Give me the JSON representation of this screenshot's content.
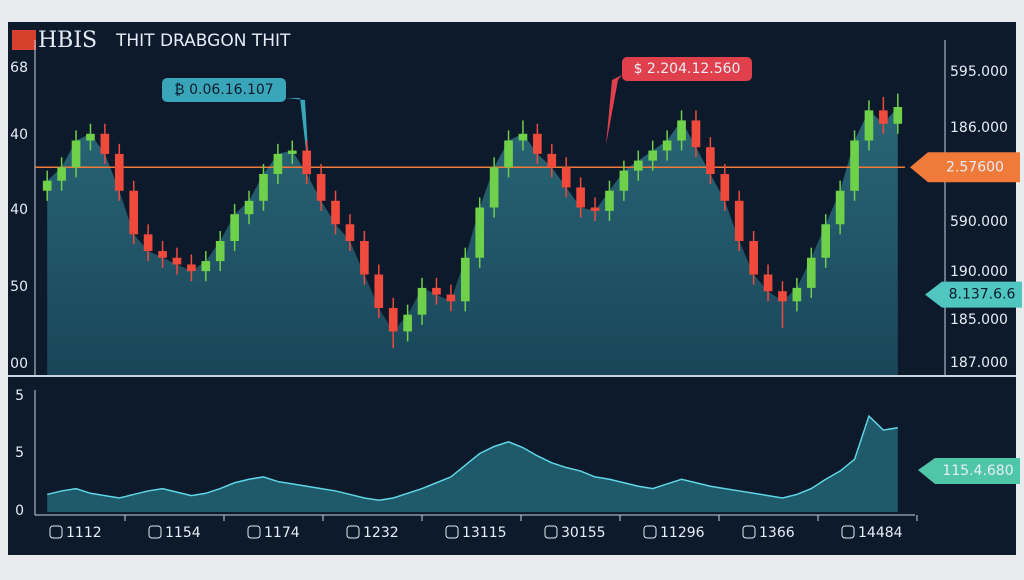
{
  "header": {
    "logo": "HBIS",
    "title": "THIT DRABGON THIT"
  },
  "badges": {
    "top_left": "₿ 0.06.16.107",
    "top_right": "$ 2.204.12.560",
    "price": "2.57600",
    "teal": "8.137.6.6",
    "lower": "115.4.680"
  },
  "left_axis": [
    "68",
    "40",
    "40",
    "50",
    "00"
  ],
  "right_axis": [
    "595.000",
    "186.000",
    "590.000",
    "190.000",
    "185.000",
    "187.000"
  ],
  "lower_axis": [
    "5",
    "5",
    "0"
  ],
  "x_labels": [
    "1112",
    "1154",
    "1174",
    "1232",
    "13115",
    "30155",
    "11296",
    "1366",
    "14484"
  ],
  "chart": {
    "type": "candlestick",
    "ylim": [
      0,
      100
    ],
    "price_line": 62,
    "teal_line": 24,
    "open": [
      55,
      58,
      62,
      70,
      72,
      66,
      55,
      42,
      37,
      35,
      33,
      31,
      34,
      40,
      48,
      52,
      60,
      66,
      67,
      60,
      52,
      45,
      40,
      30,
      20,
      13,
      18,
      26,
      24,
      22,
      35,
      50,
      62,
      70,
      72,
      66,
      62,
      56,
      50,
      49,
      55,
      61,
      64,
      67,
      70,
      76,
      68,
      60,
      52,
      40,
      30,
      25,
      22,
      26,
      35,
      45,
      55,
      70,
      79,
      75
    ],
    "high": [
      61,
      65,
      73,
      75,
      75,
      69,
      58,
      45,
      40,
      38,
      36,
      37,
      43,
      51,
      55,
      63,
      69,
      70,
      70,
      63,
      55,
      48,
      43,
      33,
      23,
      21,
      29,
      29,
      27,
      38,
      53,
      65,
      73,
      76,
      75,
      69,
      65,
      59,
      53,
      58,
      64,
      67,
      70,
      73,
      79,
      79,
      71,
      63,
      55,
      43,
      33,
      28,
      29,
      38,
      48,
      58,
      73,
      82,
      83,
      84
    ],
    "low": [
      52,
      55,
      59,
      67,
      63,
      52,
      39,
      34,
      32,
      30,
      28,
      28,
      31,
      37,
      45,
      49,
      57,
      63,
      57,
      49,
      42,
      37,
      27,
      17,
      8,
      10,
      15,
      21,
      19,
      19,
      32,
      47,
      59,
      67,
      63,
      59,
      53,
      47,
      46,
      46,
      52,
      58,
      61,
      64,
      67,
      65,
      57,
      49,
      37,
      27,
      22,
      14,
      19,
      23,
      32,
      42,
      52,
      67,
      72,
      72
    ],
    "close": [
      58,
      62,
      70,
      72,
      66,
      55,
      42,
      37,
      35,
      33,
      31,
      34,
      40,
      48,
      52,
      60,
      66,
      67,
      60,
      52,
      45,
      40,
      30,
      20,
      13,
      18,
      26,
      24,
      22,
      35,
      50,
      62,
      70,
      72,
      66,
      62,
      56,
      50,
      49,
      55,
      61,
      64,
      67,
      70,
      76,
      68,
      60,
      52,
      40,
      30,
      25,
      22,
      26,
      35,
      45,
      55,
      70,
      79,
      75,
      80
    ],
    "indicator": {
      "ylim": [
        0,
        100
      ],
      "values": [
        15,
        18,
        20,
        16,
        14,
        12,
        15,
        18,
        20,
        17,
        14,
        16,
        20,
        25,
        28,
        30,
        26,
        24,
        22,
        20,
        18,
        15,
        12,
        10,
        12,
        16,
        20,
        25,
        30,
        40,
        50,
        56,
        60,
        55,
        48,
        42,
        38,
        35,
        30,
        28,
        25,
        22,
        20,
        24,
        28,
        25,
        22,
        20,
        18,
        16,
        14,
        12,
        15,
        20,
        28,
        35,
        45,
        82,
        70,
        72
      ]
    }
  }
}
